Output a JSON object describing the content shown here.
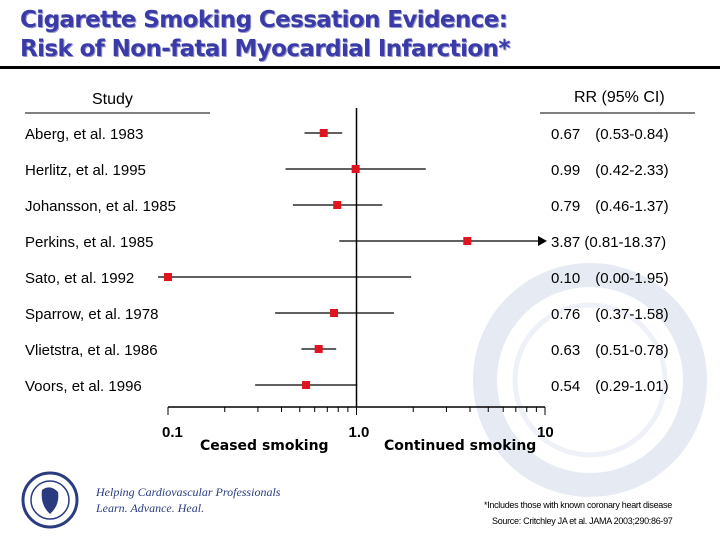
{
  "title_line1": "Cigarette Smoking Cessation Evidence:",
  "title_line2": "Risk of Non-fatal Myocardial Infarction*",
  "chart_data": {
    "type": "forest",
    "column_headers": {
      "study": "Study",
      "estimate": "RR (95% CI)"
    },
    "x_scale": "log",
    "xlim": [
      0.1,
      10
    ],
    "x_ticks": [
      "0.1",
      "1.0",
      "10"
    ],
    "x_label_left": "Ceased smoking",
    "x_label_right": "Continued smoking",
    "reference_line": 1.0,
    "marker_color": "#e0141e",
    "studies": [
      {
        "name": "Aberg, et al. 1983",
        "rr": 0.67,
        "lo": 0.53,
        "hi": 0.84,
        "label": "0.67   (0.53-0.84)"
      },
      {
        "name": "Herlitz, et al. 1995",
        "rr": 0.99,
        "lo": 0.42,
        "hi": 2.33,
        "label": "0.99   (0.42-2.33)"
      },
      {
        "name": "Johansson, et al. 1985",
        "rr": 0.79,
        "lo": 0.46,
        "hi": 1.37,
        "label": "0.79   (0.46-1.37)"
      },
      {
        "name": "Perkins, et al. 1985",
        "rr": 3.87,
        "lo": 0.81,
        "hi": 18.37,
        "label": "3.87 (0.81-18.37)"
      },
      {
        "name": "Sato, et al. 1992",
        "rr": 0.1,
        "lo": 0.0,
        "hi": 1.95,
        "label": "0.10   (0.00-1.95)"
      },
      {
        "name": "Sparrow, et al. 1978",
        "rr": 0.76,
        "lo": 0.37,
        "hi": 1.58,
        "label": "0.76   (0.37-1.58)"
      },
      {
        "name": "Vlietstra, et al. 1986",
        "rr": 0.63,
        "lo": 0.51,
        "hi": 0.78,
        "label": "0.63   (0.51-0.78)"
      },
      {
        "name": "Voors, et al. 1996",
        "rr": 0.54,
        "lo": 0.29,
        "hi": 1.01,
        "label": "0.54   (0.29-1.01)"
      }
    ]
  },
  "footer": {
    "tagline1": "Helping Cardiovascular Professionals",
    "tagline2": "Learn. Advance. Heal.",
    "footnote": "*Includes those with known coronary heart disease",
    "source": "Source: Critchley JA et al. JAMA 2003;290:86-97",
    "logo_text": "American College of Cardiology"
  }
}
